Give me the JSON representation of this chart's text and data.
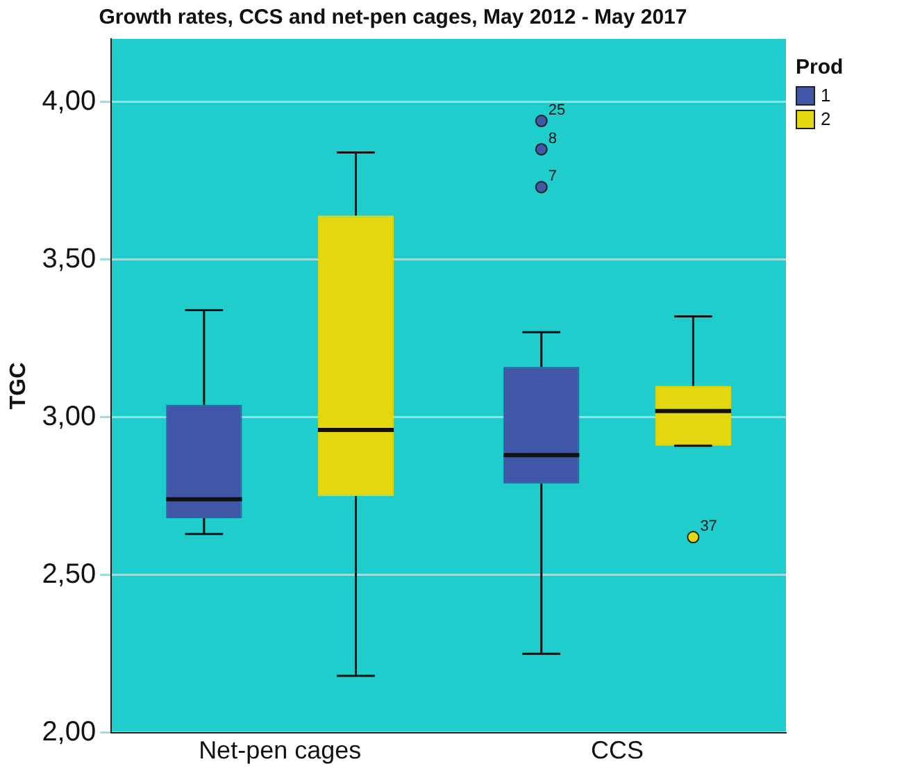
{
  "chart_data": {
    "type": "box",
    "title": "Growth rates, CCS and net-pen cages, May 2012 - May 2017",
    "ylabel": "TGC",
    "legend_title": "Prod",
    "categories": [
      "Net-pen cages",
      "CCS"
    ],
    "series": [
      {
        "name": "1",
        "color": "#3f57a6",
        "boxes": [
          {
            "low": 2.63,
            "q1": 2.68,
            "median": 2.74,
            "q3": 3.04,
            "high": 3.34
          },
          {
            "low": 2.25,
            "q1": 2.79,
            "median": 2.88,
            "q3": 3.16,
            "high": 3.27,
            "outliers": [
              3.73,
              3.85,
              3.94
            ]
          }
        ]
      },
      {
        "name": "2",
        "color": "#e3d70f",
        "boxes": [
          {
            "low": 2.18,
            "q1": 2.75,
            "median": 2.96,
            "q3": 3.64,
            "high": 3.84
          },
          {
            "low": 2.91,
            "q1": 2.91,
            "median": 3.02,
            "q3": 3.1,
            "high": 3.32,
            "outliers": [
              2.62
            ]
          }
        ]
      }
    ],
    "annotations": [
      "7",
      "8",
      "25",
      "37"
    ],
    "ylim": [
      2,
      4.2
    ],
    "yticks": [
      {
        "value": 2,
        "label": "2,00"
      },
      {
        "value": 2.5,
        "label": "2,50"
      },
      {
        "value": 3,
        "label": "3,00"
      },
      {
        "value": 3.5,
        "label": "3,50"
      },
      {
        "value": 4,
        "label": "4,00"
      }
    ],
    "grid": "y",
    "legend": "top right"
  }
}
